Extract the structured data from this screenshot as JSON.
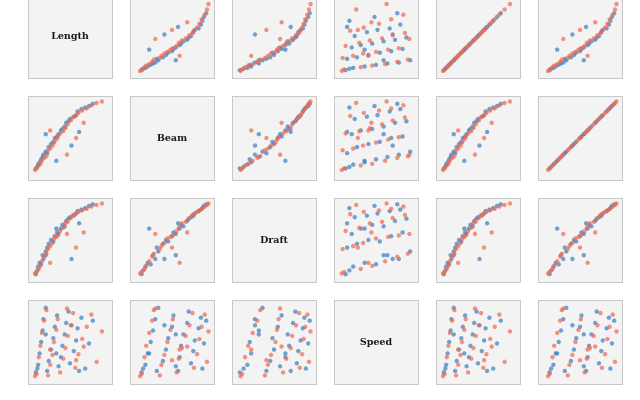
{
  "chart_data": {
    "type": "scatter",
    "matrix": "pairplot",
    "variables": [
      "Length",
      "Beam",
      "Draft",
      "Speed"
    ],
    "grid": false,
    "legend": "none",
    "colors": {
      "group_a": "#3d7fbf",
      "group_b": "#ef6a50",
      "panel_bg": "#f3f3f3",
      "panel_border": "#c8c8c8"
    },
    "axes_shown": false,
    "groups": [
      {
        "id": "group_a",
        "points": [
          {
            "Length": 0.05,
            "Beam": 0.1,
            "Draft": 0.05,
            "Speed": 0.1
          },
          {
            "Length": 0.07,
            "Beam": 0.12,
            "Draft": 0.1,
            "Speed": 0.15
          },
          {
            "Length": 0.08,
            "Beam": 0.15,
            "Draft": 0.15,
            "Speed": 0.2
          },
          {
            "Length": 0.1,
            "Beam": 0.18,
            "Draft": 0.2,
            "Speed": 0.35
          },
          {
            "Length": 0.12,
            "Beam": 0.22,
            "Draft": 0.18,
            "Speed": 0.5
          },
          {
            "Length": 0.14,
            "Beam": 0.25,
            "Draft": 0.3,
            "Speed": 0.65
          },
          {
            "Length": 0.15,
            "Beam": 0.28,
            "Draft": 0.25,
            "Speed": 0.8
          },
          {
            "Length": 0.18,
            "Beam": 0.32,
            "Draft": 0.35,
            "Speed": 0.95
          },
          {
            "Length": 0.2,
            "Beam": 0.3,
            "Draft": 0.4,
            "Speed": 0.12
          },
          {
            "Length": 0.22,
            "Beam": 0.38,
            "Draft": 0.45,
            "Speed": 0.25
          },
          {
            "Length": 0.25,
            "Beam": 0.42,
            "Draft": 0.5,
            "Speed": 0.4
          },
          {
            "Length": 0.28,
            "Beam": 0.45,
            "Draft": 0.48,
            "Speed": 0.55
          },
          {
            "Length": 0.3,
            "Beam": 0.5,
            "Draft": 0.55,
            "Speed": 0.7
          },
          {
            "Length": 0.33,
            "Beam": 0.52,
            "Draft": 0.6,
            "Speed": 0.85
          },
          {
            "Length": 0.35,
            "Beam": 0.55,
            "Draft": 0.58,
            "Speed": 0.18
          },
          {
            "Length": 0.38,
            "Beam": 0.6,
            "Draft": 0.65,
            "Speed": 0.3
          },
          {
            "Length": 0.4,
            "Beam": 0.62,
            "Draft": 0.7,
            "Speed": 0.45
          },
          {
            "Length": 0.43,
            "Beam": 0.65,
            "Draft": 0.68,
            "Speed": 0.6
          },
          {
            "Length": 0.45,
            "Beam": 0.7,
            "Draft": 0.75,
            "Speed": 0.75
          },
          {
            "Length": 0.48,
            "Beam": 0.72,
            "Draft": 0.78,
            "Speed": 0.9
          },
          {
            "Length": 0.5,
            "Beam": 0.75,
            "Draft": 0.8,
            "Speed": 0.22
          },
          {
            "Length": 0.55,
            "Beam": 0.78,
            "Draft": 0.82,
            "Speed": 0.38
          },
          {
            "Length": 0.58,
            "Beam": 0.8,
            "Draft": 0.85,
            "Speed": 0.52
          },
          {
            "Length": 0.6,
            "Beam": 0.85,
            "Draft": 0.88,
            "Speed": 0.68
          },
          {
            "Length": 0.65,
            "Beam": 0.88,
            "Draft": 0.9,
            "Speed": 0.82
          },
          {
            "Length": 0.7,
            "Beam": 0.9,
            "Draft": 0.92,
            "Speed": 0.15
          },
          {
            "Length": 0.75,
            "Beam": 0.92,
            "Draft": 0.95,
            "Speed": 0.48
          },
          {
            "Length": 0.8,
            "Beam": 0.95,
            "Draft": 0.97,
            "Speed": 0.78
          },
          {
            "Length": 0.18,
            "Beam": 0.55,
            "Draft": 0.3,
            "Speed": 0.6
          },
          {
            "Length": 0.32,
            "Beam": 0.2,
            "Draft": 0.65,
            "Speed": 0.35
          },
          {
            "Length": 0.52,
            "Beam": 0.4,
            "Draft": 0.25,
            "Speed": 0.72
          },
          {
            "Length": 0.62,
            "Beam": 0.58,
            "Draft": 0.72,
            "Speed": 0.12
          }
        ]
      },
      {
        "id": "group_b",
        "points": [
          {
            "Length": 0.04,
            "Beam": 0.08,
            "Draft": 0.06,
            "Speed": 0.05
          },
          {
            "Length": 0.06,
            "Beam": 0.1,
            "Draft": 0.08,
            "Speed": 0.08
          },
          {
            "Length": 0.09,
            "Beam": 0.14,
            "Draft": 0.12,
            "Speed": 0.3
          },
          {
            "Length": 0.11,
            "Beam": 0.16,
            "Draft": 0.16,
            "Speed": 0.45
          },
          {
            "Length": 0.13,
            "Beam": 0.2,
            "Draft": 0.22,
            "Speed": 0.62
          },
          {
            "Length": 0.16,
            "Beam": 0.24,
            "Draft": 0.28,
            "Speed": 0.78
          },
          {
            "Length": 0.19,
            "Beam": 0.26,
            "Draft": 0.32,
            "Speed": 0.92
          },
          {
            "Length": 0.21,
            "Beam": 0.34,
            "Draft": 0.38,
            "Speed": 0.06
          },
          {
            "Length": 0.24,
            "Beam": 0.36,
            "Draft": 0.42,
            "Speed": 0.2
          },
          {
            "Length": 0.27,
            "Beam": 0.4,
            "Draft": 0.46,
            "Speed": 0.33
          },
          {
            "Length": 0.29,
            "Beam": 0.44,
            "Draft": 0.52,
            "Speed": 0.5
          },
          {
            "Length": 0.32,
            "Beam": 0.48,
            "Draft": 0.54,
            "Speed": 0.66
          },
          {
            "Length": 0.34,
            "Beam": 0.51,
            "Draft": 0.56,
            "Speed": 0.8
          },
          {
            "Length": 0.37,
            "Beam": 0.56,
            "Draft": 0.62,
            "Speed": 0.1
          },
          {
            "Length": 0.41,
            "Beam": 0.59,
            "Draft": 0.66,
            "Speed": 0.28
          },
          {
            "Length": 0.44,
            "Beam": 0.63,
            "Draft": 0.72,
            "Speed": 0.42
          },
          {
            "Length": 0.47,
            "Beam": 0.68,
            "Draft": 0.74,
            "Speed": 0.58
          },
          {
            "Length": 0.51,
            "Beam": 0.73,
            "Draft": 0.79,
            "Speed": 0.72
          },
          {
            "Length": 0.54,
            "Beam": 0.77,
            "Draft": 0.83,
            "Speed": 0.88
          },
          {
            "Length": 0.57,
            "Beam": 0.79,
            "Draft": 0.84,
            "Speed": 0.16
          },
          {
            "Length": 0.61,
            "Beam": 0.83,
            "Draft": 0.87,
            "Speed": 0.34
          },
          {
            "Length": 0.66,
            "Beam": 0.86,
            "Draft": 0.89,
            "Speed": 0.54
          },
          {
            "Length": 0.72,
            "Beam": 0.89,
            "Draft": 0.91,
            "Speed": 0.7
          },
          {
            "Length": 0.78,
            "Beam": 0.93,
            "Draft": 0.94,
            "Speed": 0.86
          },
          {
            "Length": 0.85,
            "Beam": 0.96,
            "Draft": 0.96,
            "Speed": 0.24
          },
          {
            "Length": 0.92,
            "Beam": 0.98,
            "Draft": 0.98,
            "Speed": 0.64
          },
          {
            "Length": 0.24,
            "Beam": 0.6,
            "Draft": 0.2,
            "Speed": 0.4
          },
          {
            "Length": 0.46,
            "Beam": 0.28,
            "Draft": 0.58,
            "Speed": 0.94
          },
          {
            "Length": 0.58,
            "Beam": 0.5,
            "Draft": 0.4,
            "Speed": 0.26
          },
          {
            "Length": 0.68,
            "Beam": 0.7,
            "Draft": 0.6,
            "Speed": 0.44
          }
        ]
      }
    ]
  }
}
